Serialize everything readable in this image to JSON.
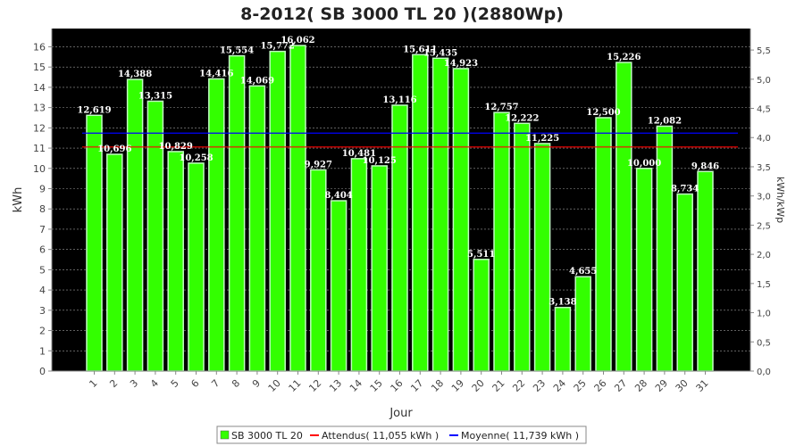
{
  "chart_data": {
    "type": "bar",
    "title": "8-2012( SB 3000 TL 20 )(2880Wp)",
    "xlabel": "Jour",
    "ylabel": "kWh",
    "ylabel_right": "kWh/kWp",
    "ylim": [
      0,
      16.9
    ],
    "ylim_right": [
      0,
      5.868
    ],
    "y_ticks": [
      0,
      1,
      2,
      3,
      4,
      5,
      6,
      7,
      8,
      9,
      10,
      11,
      12,
      13,
      14,
      15,
      16
    ],
    "y_ticks_right": [
      "0,0",
      "0,5",
      "1,0",
      "1,5",
      "2,0",
      "2,5",
      "3,0",
      "3,5",
      "4,0",
      "4,5",
      "5,0",
      "5,5"
    ],
    "categories": [
      "1",
      "2",
      "3",
      "4",
      "5",
      "6",
      "7",
      "8",
      "9",
      "10",
      "11",
      "12",
      "13",
      "14",
      "15",
      "16",
      "17",
      "18",
      "19",
      "20",
      "21",
      "22",
      "23",
      "24",
      "25",
      "26",
      "27",
      "28",
      "29",
      "30",
      "31"
    ],
    "series": [
      {
        "name": "SB 3000 TL 20",
        "color": "#33ff00",
        "values": [
          12.619,
          10.696,
          14.388,
          13.315,
          10.829,
          10.258,
          14.416,
          15.554,
          14.069,
          15.772,
          16.062,
          9.927,
          8.404,
          10.481,
          10.125,
          13.116,
          15.611,
          15.435,
          14.923,
          5.511,
          12.757,
          12.222,
          11.225,
          3.138,
          4.655,
          12.5,
          15.226,
          10.0,
          12.082,
          8.734,
          9.846
        ],
        "labels": [
          "12,619",
          "10,696",
          "14,388",
          "13,315",
          "10,829",
          "10,258",
          "14,416",
          "15,554",
          "14,069",
          "15,772",
          "16,062",
          "9,927",
          "8,404",
          "10,481",
          "10,125",
          "13,116",
          "15,611",
          "15,435",
          "14,923",
          "5,511",
          "12,757",
          "12,222",
          "11,225",
          "3,138",
          "4,655",
          "12,500",
          "15,226",
          "10,000",
          "12,082",
          "8,734",
          "9,846"
        ]
      }
    ],
    "reference_lines": [
      {
        "name": "Attendus( 11,055 kWh )",
        "value": 11.055,
        "color": "#ff0000"
      },
      {
        "name": "Moyenne( 11,739 kWh )",
        "value": 11.739,
        "color": "#0000ff"
      }
    ],
    "grid": true,
    "legend": "bottom-center",
    "background": "#000000"
  }
}
